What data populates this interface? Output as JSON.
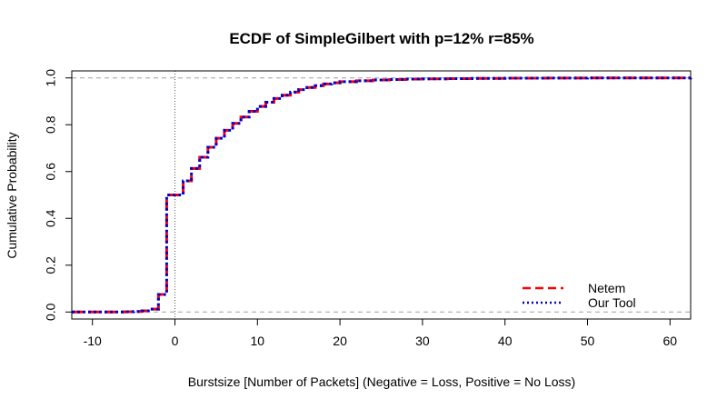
{
  "chart_data": {
    "type": "line",
    "subtype": "ecdf-step",
    "title": "ECDF of SimpleGilbert with p=12% r=85%",
    "xlabel": "Burstsize [Number of Packets] (Negative = Loss, Positive = No Loss)",
    "ylabel": "Cumulative Probability",
    "xlim": [
      -12.5,
      62.5
    ],
    "ylim": [
      -0.03,
      1.03
    ],
    "xticks": [
      -10,
      0,
      10,
      20,
      30,
      40,
      50,
      60
    ],
    "xtick_labels": [
      "-10",
      "0",
      "10",
      "20",
      "30",
      "40",
      "50",
      "60"
    ],
    "yticks": [
      0.0,
      0.2,
      0.4,
      0.6,
      0.8,
      1.0
    ],
    "ytick_labels": [
      "0.0",
      "0.2",
      "0.4",
      "0.6",
      "0.8",
      "1.0"
    ],
    "reference_lines": {
      "horizontal": [
        0,
        1
      ],
      "vertical": [
        0
      ]
    },
    "legend_position": "bottom-right",
    "legend": [
      {
        "name": "Netem",
        "color": "#ff0000",
        "style": "dashed"
      },
      {
        "name": "Our Tool",
        "color": "#0000cc",
        "style": "dotted"
      }
    ],
    "series": [
      {
        "name": "Netem",
        "color": "#ff0000",
        "style": "dashed",
        "x": [
          -13,
          -6,
          -5,
          -4,
          -3,
          -2,
          -1,
          1,
          2,
          3,
          4,
          5,
          6,
          7,
          8,
          9,
          10,
          11,
          12,
          13,
          14,
          15,
          16,
          17,
          18,
          19,
          20,
          22,
          24,
          26,
          28,
          30,
          33,
          36,
          40,
          45,
          50,
          56,
          63
        ],
        "y": [
          0.0,
          0.001,
          0.002,
          0.005,
          0.012,
          0.075,
          0.5,
          0.56,
          0.613,
          0.661,
          0.704,
          0.742,
          0.776,
          0.806,
          0.833,
          0.857,
          0.878,
          0.896,
          0.912,
          0.926,
          0.939,
          0.95,
          0.959,
          0.967,
          0.974,
          0.979,
          0.984,
          0.988,
          0.991,
          0.993,
          0.995,
          0.996,
          0.997,
          0.998,
          0.999,
          0.9995,
          0.9998,
          0.9999,
          1.0
        ]
      },
      {
        "name": "Our Tool",
        "color": "#0000cc",
        "style": "dotted",
        "x": [
          -13,
          -6,
          -5,
          -4,
          -3,
          -2,
          -1,
          1,
          2,
          3,
          4,
          5,
          6,
          7,
          8,
          9,
          10,
          11,
          12,
          13,
          14,
          15,
          16,
          17,
          18,
          19,
          20,
          22,
          24,
          26,
          28,
          30,
          33,
          36,
          40,
          45,
          50,
          56,
          63
        ],
        "y": [
          0.0,
          0.001,
          0.002,
          0.005,
          0.012,
          0.075,
          0.5,
          0.56,
          0.613,
          0.661,
          0.704,
          0.742,
          0.776,
          0.806,
          0.833,
          0.857,
          0.878,
          0.896,
          0.912,
          0.926,
          0.939,
          0.95,
          0.959,
          0.967,
          0.974,
          0.979,
          0.984,
          0.988,
          0.991,
          0.993,
          0.995,
          0.996,
          0.997,
          0.998,
          0.999,
          0.9995,
          0.9998,
          0.9999,
          1.0
        ]
      }
    ]
  }
}
